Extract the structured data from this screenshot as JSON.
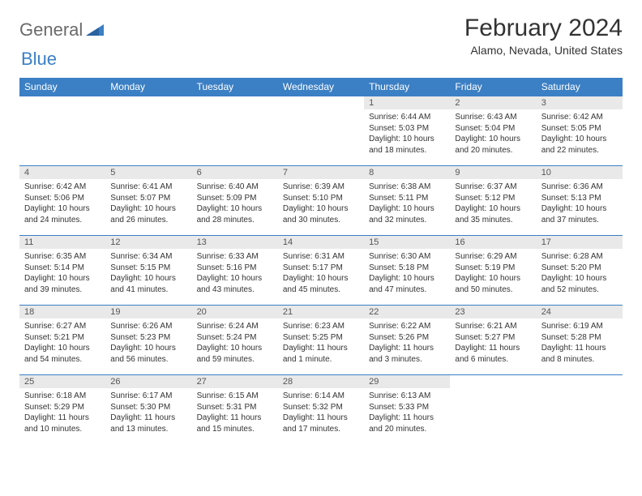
{
  "logo": {
    "part1": "General",
    "part2": "Blue"
  },
  "title": "February 2024",
  "location": "Alamo, Nevada, United States",
  "colors": {
    "header_bg": "#3b7fc4",
    "header_text": "#ffffff",
    "daynum_bg": "#e9e9e9",
    "text": "#333333",
    "logo_gray": "#6a6a6a",
    "logo_blue": "#3b7fc4"
  },
  "weekdays": [
    "Sunday",
    "Monday",
    "Tuesday",
    "Wednesday",
    "Thursday",
    "Friday",
    "Saturday"
  ],
  "weeks": [
    [
      null,
      null,
      null,
      null,
      {
        "num": "1",
        "sunrise": "Sunrise: 6:44 AM",
        "sunset": "Sunset: 5:03 PM",
        "daylight": "Daylight: 10 hours and 18 minutes."
      },
      {
        "num": "2",
        "sunrise": "Sunrise: 6:43 AM",
        "sunset": "Sunset: 5:04 PM",
        "daylight": "Daylight: 10 hours and 20 minutes."
      },
      {
        "num": "3",
        "sunrise": "Sunrise: 6:42 AM",
        "sunset": "Sunset: 5:05 PM",
        "daylight": "Daylight: 10 hours and 22 minutes."
      }
    ],
    [
      {
        "num": "4",
        "sunrise": "Sunrise: 6:42 AM",
        "sunset": "Sunset: 5:06 PM",
        "daylight": "Daylight: 10 hours and 24 minutes."
      },
      {
        "num": "5",
        "sunrise": "Sunrise: 6:41 AM",
        "sunset": "Sunset: 5:07 PM",
        "daylight": "Daylight: 10 hours and 26 minutes."
      },
      {
        "num": "6",
        "sunrise": "Sunrise: 6:40 AM",
        "sunset": "Sunset: 5:09 PM",
        "daylight": "Daylight: 10 hours and 28 minutes."
      },
      {
        "num": "7",
        "sunrise": "Sunrise: 6:39 AM",
        "sunset": "Sunset: 5:10 PM",
        "daylight": "Daylight: 10 hours and 30 minutes."
      },
      {
        "num": "8",
        "sunrise": "Sunrise: 6:38 AM",
        "sunset": "Sunset: 5:11 PM",
        "daylight": "Daylight: 10 hours and 32 minutes."
      },
      {
        "num": "9",
        "sunrise": "Sunrise: 6:37 AM",
        "sunset": "Sunset: 5:12 PM",
        "daylight": "Daylight: 10 hours and 35 minutes."
      },
      {
        "num": "10",
        "sunrise": "Sunrise: 6:36 AM",
        "sunset": "Sunset: 5:13 PM",
        "daylight": "Daylight: 10 hours and 37 minutes."
      }
    ],
    [
      {
        "num": "11",
        "sunrise": "Sunrise: 6:35 AM",
        "sunset": "Sunset: 5:14 PM",
        "daylight": "Daylight: 10 hours and 39 minutes."
      },
      {
        "num": "12",
        "sunrise": "Sunrise: 6:34 AM",
        "sunset": "Sunset: 5:15 PM",
        "daylight": "Daylight: 10 hours and 41 minutes."
      },
      {
        "num": "13",
        "sunrise": "Sunrise: 6:33 AM",
        "sunset": "Sunset: 5:16 PM",
        "daylight": "Daylight: 10 hours and 43 minutes."
      },
      {
        "num": "14",
        "sunrise": "Sunrise: 6:31 AM",
        "sunset": "Sunset: 5:17 PM",
        "daylight": "Daylight: 10 hours and 45 minutes."
      },
      {
        "num": "15",
        "sunrise": "Sunrise: 6:30 AM",
        "sunset": "Sunset: 5:18 PM",
        "daylight": "Daylight: 10 hours and 47 minutes."
      },
      {
        "num": "16",
        "sunrise": "Sunrise: 6:29 AM",
        "sunset": "Sunset: 5:19 PM",
        "daylight": "Daylight: 10 hours and 50 minutes."
      },
      {
        "num": "17",
        "sunrise": "Sunrise: 6:28 AM",
        "sunset": "Sunset: 5:20 PM",
        "daylight": "Daylight: 10 hours and 52 minutes."
      }
    ],
    [
      {
        "num": "18",
        "sunrise": "Sunrise: 6:27 AM",
        "sunset": "Sunset: 5:21 PM",
        "daylight": "Daylight: 10 hours and 54 minutes."
      },
      {
        "num": "19",
        "sunrise": "Sunrise: 6:26 AM",
        "sunset": "Sunset: 5:23 PM",
        "daylight": "Daylight: 10 hours and 56 minutes."
      },
      {
        "num": "20",
        "sunrise": "Sunrise: 6:24 AM",
        "sunset": "Sunset: 5:24 PM",
        "daylight": "Daylight: 10 hours and 59 minutes."
      },
      {
        "num": "21",
        "sunrise": "Sunrise: 6:23 AM",
        "sunset": "Sunset: 5:25 PM",
        "daylight": "Daylight: 11 hours and 1 minute."
      },
      {
        "num": "22",
        "sunrise": "Sunrise: 6:22 AM",
        "sunset": "Sunset: 5:26 PM",
        "daylight": "Daylight: 11 hours and 3 minutes."
      },
      {
        "num": "23",
        "sunrise": "Sunrise: 6:21 AM",
        "sunset": "Sunset: 5:27 PM",
        "daylight": "Daylight: 11 hours and 6 minutes."
      },
      {
        "num": "24",
        "sunrise": "Sunrise: 6:19 AM",
        "sunset": "Sunset: 5:28 PM",
        "daylight": "Daylight: 11 hours and 8 minutes."
      }
    ],
    [
      {
        "num": "25",
        "sunrise": "Sunrise: 6:18 AM",
        "sunset": "Sunset: 5:29 PM",
        "daylight": "Daylight: 11 hours and 10 minutes."
      },
      {
        "num": "26",
        "sunrise": "Sunrise: 6:17 AM",
        "sunset": "Sunset: 5:30 PM",
        "daylight": "Daylight: 11 hours and 13 minutes."
      },
      {
        "num": "27",
        "sunrise": "Sunrise: 6:15 AM",
        "sunset": "Sunset: 5:31 PM",
        "daylight": "Daylight: 11 hours and 15 minutes."
      },
      {
        "num": "28",
        "sunrise": "Sunrise: 6:14 AM",
        "sunset": "Sunset: 5:32 PM",
        "daylight": "Daylight: 11 hours and 17 minutes."
      },
      {
        "num": "29",
        "sunrise": "Sunrise: 6:13 AM",
        "sunset": "Sunset: 5:33 PM",
        "daylight": "Daylight: 11 hours and 20 minutes."
      },
      null,
      null
    ]
  ]
}
